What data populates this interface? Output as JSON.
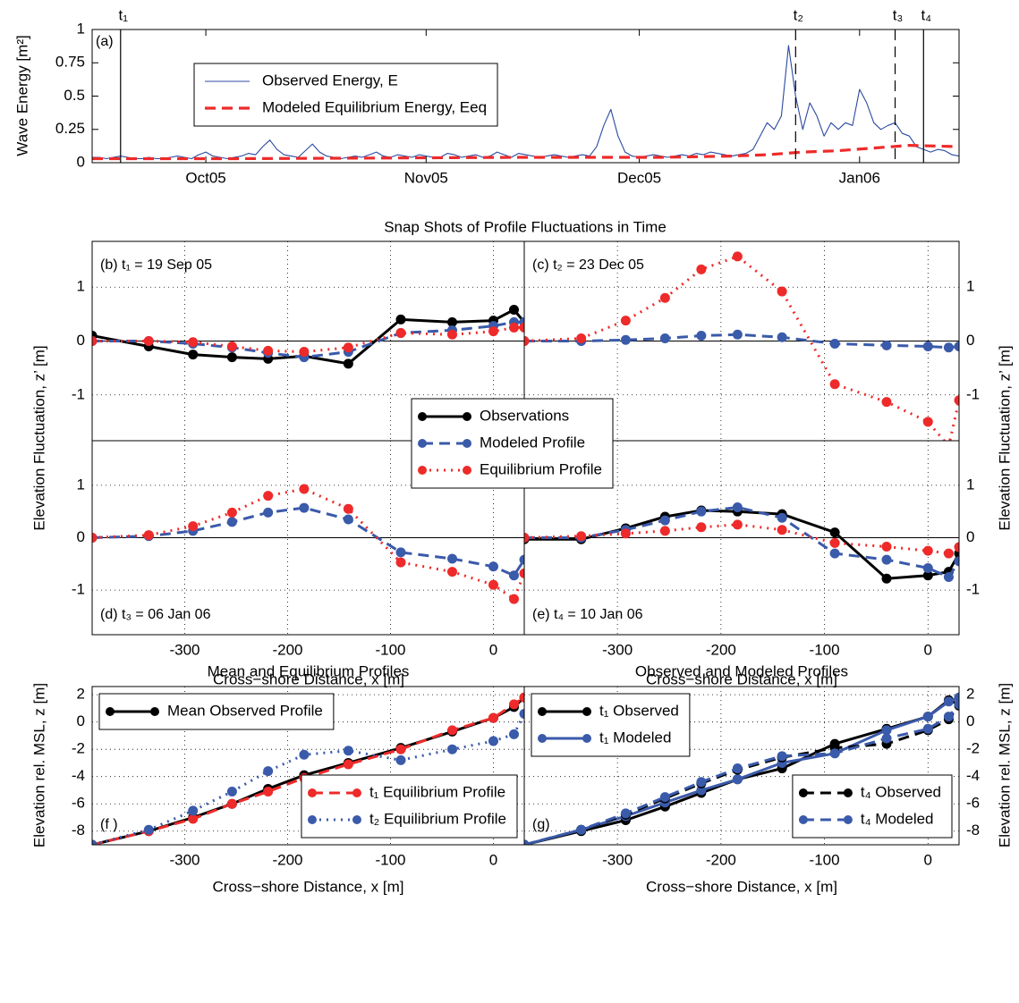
{
  "chart_data": [
    {
      "type": "line",
      "panel_label": "(a)",
      "ylabel": "Wave Energy [m²]",
      "xlim": [
        0,
        122
      ],
      "xticks": [
        {
          "value": 16,
          "label": "Oct05"
        },
        {
          "value": 47,
          "label": "Nov05"
        },
        {
          "value": 77,
          "label": "Dec05"
        },
        {
          "value": 108,
          "label": "Jan06"
        }
      ],
      "ylim": [
        0,
        1
      ],
      "yticks": [
        0,
        0.25,
        0.5,
        0.75,
        1
      ],
      "grid": false,
      "markers": [
        {
          "label": "t₁",
          "x": 4,
          "style": "solid"
        },
        {
          "label": "t₂",
          "x": 99,
          "style": "dashed"
        },
        {
          "label": "t₃",
          "x": 113,
          "style": "dashed"
        },
        {
          "label": "t₄",
          "x": 117,
          "style": "solid"
        }
      ],
      "series": [
        {
          "name": "Observed Energy, E",
          "color": "#2b4aa0",
          "style": "solid",
          "x": [
            0,
            1,
            2,
            3,
            4,
            5,
            6,
            7,
            8,
            9,
            10,
            11,
            12,
            13,
            14,
            15,
            16,
            17,
            18,
            19,
            20,
            21,
            22,
            23,
            24,
            25,
            26,
            27,
            28,
            29,
            30,
            31,
            32,
            33,
            34,
            35,
            36,
            37,
            38,
            39,
            40,
            41,
            42,
            43,
            44,
            45,
            46,
            47,
            48,
            49,
            50,
            51,
            52,
            53,
            54,
            55,
            56,
            57,
            58,
            59,
            60,
            61,
            62,
            63,
            64,
            65,
            66,
            67,
            68,
            69,
            70,
            71,
            72,
            73,
            74,
            75,
            76,
            77,
            78,
            79,
            80,
            81,
            82,
            83,
            84,
            85,
            86,
            87,
            88,
            89,
            90,
            91,
            92,
            93,
            94,
            95,
            96,
            97,
            98,
            99,
            100,
            101,
            102,
            103,
            104,
            105,
            106,
            107,
            108,
            109,
            110,
            111,
            112,
            113,
            114,
            115,
            116,
            117,
            118,
            119,
            120,
            121,
            122
          ],
          "values": [
            0.04,
            0.04,
            0.03,
            0.04,
            0.05,
            0.04,
            0.03,
            0.03,
            0.04,
            0.03,
            0.03,
            0.04,
            0.05,
            0.04,
            0.03,
            0.06,
            0.08,
            0.05,
            0.04,
            0.03,
            0.04,
            0.05,
            0.07,
            0.06,
            0.12,
            0.17,
            0.1,
            0.06,
            0.05,
            0.04,
            0.09,
            0.14,
            0.08,
            0.05,
            0.04,
            0.03,
            0.04,
            0.05,
            0.04,
            0.06,
            0.08,
            0.05,
            0.04,
            0.06,
            0.05,
            0.04,
            0.06,
            0.05,
            0.04,
            0.04,
            0.07,
            0.06,
            0.04,
            0.05,
            0.06,
            0.04,
            0.05,
            0.08,
            0.06,
            0.04,
            0.07,
            0.06,
            0.05,
            0.04,
            0.05,
            0.06,
            0.05,
            0.04,
            0.05,
            0.06,
            0.05,
            0.12,
            0.28,
            0.4,
            0.2,
            0.08,
            0.05,
            0.04,
            0.05,
            0.06,
            0.05,
            0.04,
            0.05,
            0.06,
            0.05,
            0.07,
            0.06,
            0.08,
            0.07,
            0.06,
            0.05,
            0.06,
            0.07,
            0.1,
            0.2,
            0.3,
            0.25,
            0.35,
            0.88,
            0.5,
            0.25,
            0.45,
            0.35,
            0.2,
            0.3,
            0.25,
            0.3,
            0.28,
            0.55,
            0.45,
            0.3,
            0.25,
            0.28,
            0.3,
            0.22,
            0.2,
            0.12,
            0.1,
            0.08,
            0.1,
            0.09,
            0.06,
            0.05
          ]
        },
        {
          "name": "Modeled Equilibrium Energy, Eeq",
          "color": "#ee2a2a",
          "style": "dashed",
          "x": [
            0,
            20,
            40,
            60,
            80,
            90,
            95,
            100,
            105,
            110,
            115,
            122
          ],
          "values": [
            0.03,
            0.03,
            0.035,
            0.04,
            0.04,
            0.05,
            0.06,
            0.08,
            0.09,
            0.11,
            0.13,
            0.12
          ]
        }
      ]
    },
    {
      "type": "line",
      "title": "Snap Shots of Profile Fluctuations in Time",
      "xlabel": "Cross−shore Distance, x [m]",
      "ylabel": "Elevation Fluctuation, z’ [m]",
      "x": [
        -390,
        -335,
        -292,
        -254,
        -219,
        -184,
        -141,
        -90,
        -40,
        0,
        20,
        30
      ],
      "xlim": [
        -390,
        30
      ],
      "xticks": [
        -300,
        -200,
        -100,
        0
      ],
      "ylim": [
        -1.85,
        1.85
      ],
      "yticks": [
        -1,
        0,
        1
      ],
      "grid": true,
      "series": [
        {
          "name": "Observations",
          "color": "#000000",
          "style": "solid"
        },
        {
          "name": "Modeled Profile",
          "color": "#3a5aaa",
          "style": "dashed"
        },
        {
          "name": "Equilibrium Profile",
          "color": "#ee2a2a",
          "style": "dotted"
        }
      ],
      "panels": [
        {
          "label": "(b) t₁ = 19 Sep 05",
          "values": [
            [
              0.1,
              -0.1,
              -0.25,
              -0.3,
              -0.33,
              -0.28,
              -0.42,
              0.4,
              0.35,
              0.38,
              0.58,
              0.35
            ],
            [
              0,
              0,
              -0.05,
              -0.12,
              -0.22,
              -0.3,
              -0.2,
              0.15,
              0.2,
              0.28,
              0.35,
              0.35
            ],
            [
              0,
              0,
              -0.02,
              -0.1,
              -0.18,
              -0.2,
              -0.12,
              0.15,
              0.12,
              0.18,
              0.25,
              0.25
            ]
          ]
        },
        {
          "label": "(c) t₂ = 23 Dec 05",
          "values": [
            null,
            [
              0,
              0,
              0.02,
              0.05,
              0.1,
              0.12,
              0.07,
              -0.05,
              -0.08,
              -0.1,
              -0.12,
              -0.1
            ],
            [
              0,
              0.05,
              0.38,
              0.8,
              1.33,
              1.57,
              0.92,
              -0.8,
              -1.13,
              -1.5,
              -1.95,
              -1.1
            ]
          ]
        },
        {
          "label": "(d) t₃ = 06 Jan 06",
          "values": [
            null,
            [
              0,
              0.03,
              0.13,
              0.3,
              0.48,
              0.57,
              0.35,
              -0.28,
              -0.4,
              -0.55,
              -0.72,
              -0.42
            ],
            [
              0,
              0.05,
              0.22,
              0.48,
              0.8,
              0.93,
              0.55,
              -0.47,
              -0.65,
              -0.9,
              -1.17,
              -0.68
            ]
          ]
        },
        {
          "label": "(e) t₄ = 10 Jan 06",
          "values": [
            [
              -0.03,
              -0.03,
              0.18,
              0.4,
              0.52,
              0.5,
              0.45,
              0.1,
              -0.78,
              -0.72,
              -0.65,
              -0.3
            ],
            [
              0,
              0,
              0.15,
              0.33,
              0.5,
              0.58,
              0.38,
              -0.3,
              -0.42,
              -0.58,
              -0.75,
              -0.45
            ],
            [
              0,
              0.03,
              0.08,
              0.13,
              0.2,
              0.25,
              0.15,
              -0.1,
              -0.17,
              -0.25,
              -0.3,
              -0.18
            ]
          ]
        }
      ]
    },
    {
      "type": "line",
      "title": "Mean and Equilibrium Profiles",
      "panel_label": "(f )",
      "xlabel": "Cross−shore Distance, x [m]",
      "ylabel": "Elevation rel. MSL, z [m]",
      "x": [
        -390,
        -335,
        -292,
        -254,
        -219,
        -184,
        -141,
        -90,
        -40,
        0,
        20,
        30
      ],
      "xlim": [
        -390,
        30
      ],
      "xticks": [
        -300,
        -200,
        -100,
        0
      ],
      "ylim": [
        -9,
        2.6
      ],
      "yticks": [
        -8,
        -6,
        -4,
        -2,
        0,
        2
      ],
      "grid": true,
      "yaxis": "left",
      "series": [
        {
          "name": "Mean Observed Profile",
          "color": "#000000",
          "style": "solid",
          "legend": "upper left",
          "values": [
            -9,
            -8,
            -7,
            -6,
            -4.9,
            -3.9,
            -3,
            -1.9,
            -0.7,
            0.3,
            1.1,
            1.8
          ]
        },
        {
          "name": "t₁ Equilibrium Profile",
          "color": "#ee2a2a",
          "style": "dashed",
          "legend": "lower right",
          "values": [
            -9,
            -8,
            -7.1,
            -6,
            -5.1,
            -4.1,
            -3.1,
            -2,
            -0.6,
            0.3,
            1.3,
            1.8
          ]
        },
        {
          "name": "t₂ Equilibrium Profile",
          "color": "#3a5aaa",
          "style": "dotted",
          "legend": "lower right",
          "values": [
            -9,
            -7.9,
            -6.5,
            -5.1,
            -3.6,
            -2.4,
            -2.1,
            -2.8,
            -2,
            -1.4,
            -0.9,
            0.6
          ]
        }
      ]
    },
    {
      "type": "line",
      "title": "Observed and Modeled Profiles",
      "panel_label": "(g)",
      "xlabel": "Cross−shore Distance, x [m]",
      "ylabel": "Elevation rel. MSL, z [m]",
      "x": [
        -390,
        -335,
        -292,
        -254,
        -219,
        -184,
        -141,
        -90,
        -40,
        0,
        20,
        30
      ],
      "xlim": [
        -390,
        30
      ],
      "xticks": [
        -300,
        -200,
        -100,
        0
      ],
      "ylim": [
        -9,
        2.6
      ],
      "yticks": [
        -8,
        -6,
        -4,
        -2,
        0,
        2
      ],
      "grid": true,
      "yaxis": "right",
      "series": [
        {
          "name": "t₁ Observed",
          "color": "#000000",
          "style": "solid",
          "legend": "upper left",
          "values": [
            -9,
            -8,
            -7.2,
            -6.2,
            -5.2,
            -4.2,
            -3.4,
            -1.6,
            -0.5,
            0.4,
            1.6,
            1.3
          ]
        },
        {
          "name": "t₁ Modeled",
          "color": "#3a5aaa",
          "style": "solid",
          "legend": "upper left",
          "values": [
            -9,
            -7.9,
            -6.9,
            -5.9,
            -5,
            -4.2,
            -3,
            -2.3,
            -0.6,
            0.4,
            1.5,
            1.8
          ]
        },
        {
          "name": "t₄ Observed",
          "color": "#000000",
          "style": "dashed",
          "legend": "lower right",
          "values": [
            -9,
            -7.9,
            -6.8,
            -5.6,
            -4.5,
            -3.5,
            -2.6,
            -1.9,
            -1.6,
            -0.6,
            0.2,
            1.2
          ]
        },
        {
          "name": "t₄ Modeled",
          "color": "#3a5aaa",
          "style": "dashed",
          "legend": "lower right",
          "values": [
            -9,
            -7.9,
            -6.7,
            -5.5,
            -4.4,
            -3.4,
            -2.5,
            -2.3,
            -1.2,
            -0.5,
            0.4,
            1.3
          ]
        }
      ]
    }
  ]
}
